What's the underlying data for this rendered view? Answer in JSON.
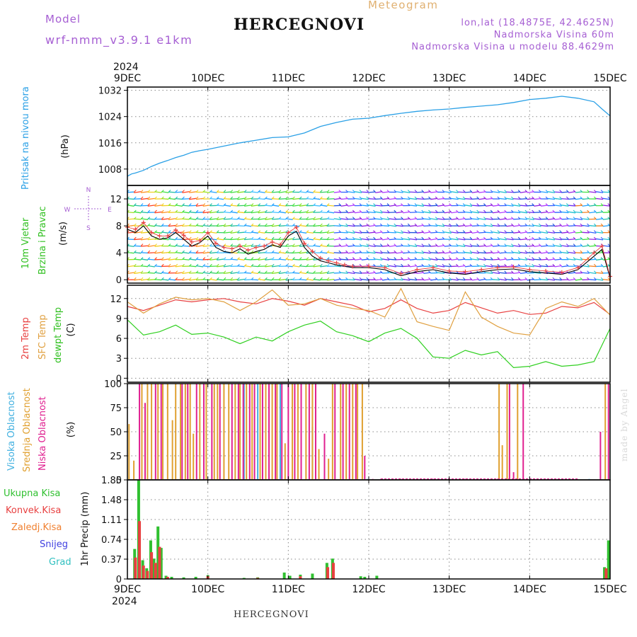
{
  "header": {
    "model_label": "Model",
    "model_name": "wrf-nmm_v3.9.1 e1km",
    "title": "HERCEGNOVI",
    "product": "Meteogram",
    "lonlat": "lon,lat (18.4875E, 42.4625N)",
    "elevation": "Nadmorska Visina 60m",
    "model_elevation": "Nadmorska Visina u modelu 88.4629m"
  },
  "footer": {
    "station": "HERCEGNOVI",
    "credit": "made by Angel"
  },
  "x_axis": {
    "year": "2024",
    "ticks": [
      "9DEC",
      "10DEC",
      "11DEC",
      "12DEC",
      "13DEC",
      "14DEC",
      "15DEC"
    ]
  },
  "colors": {
    "pressure": "#2aa0e6",
    "temp2m": "#e84040",
    "sfc": "#e0a040",
    "dewpt": "#30d020",
    "cloud_high": "#40b0e0",
    "cloud_mid": "#e0a030",
    "cloud_low": "#e02090",
    "precip_total": "#30c030",
    "precip_conv": "#e84040",
    "precip_frozen": "#f08030",
    "snow": "#4040e0",
    "hail": "#30c0c0",
    "purple_text": "#a65fd3"
  },
  "chart_data": [
    {
      "type": "line",
      "panel": "pressure",
      "ylabel_lines": [
        "Pritisak na nivou mora",
        "(hPa)"
      ],
      "yticks": [
        "1008",
        "1016",
        "1024",
        "1032"
      ],
      "ylim": [
        1003,
        1033
      ],
      "x_days": [
        0,
        0.05,
        0.1,
        0.2,
        0.3,
        0.4,
        0.5,
        0.6,
        0.7,
        0.8,
        0.9,
        1.0,
        1.2,
        1.4,
        1.6,
        1.8,
        2.0,
        2.2,
        2.4,
        2.6,
        2.8,
        3.0,
        3.2,
        3.4,
        3.6,
        3.8,
        4.0,
        4.2,
        4.4,
        4.6,
        4.8,
        5.0,
        5.2,
        5.4,
        5.6,
        5.8,
        5.9,
        6.0
      ],
      "values": [
        1005.8,
        1006.5,
        1006.8,
        1007.6,
        1008.8,
        1009.8,
        1010.6,
        1011.5,
        1012.2,
        1013.1,
        1013.6,
        1014.0,
        1015.0,
        1016.0,
        1016.8,
        1017.6,
        1017.8,
        1019.0,
        1021.0,
        1022.2,
        1023.2,
        1023.5,
        1024.3,
        1025.0,
        1025.6,
        1026.0,
        1026.3,
        1026.8,
        1027.2,
        1027.6,
        1028.3,
        1029.2,
        1029.6,
        1030.2,
        1029.6,
        1028.5,
        1026.3,
        1024.2
      ],
      "series": [
        {
          "name": "",
          "color": "#2aa0e6"
        }
      ]
    },
    {
      "type": "line",
      "panel": "wind",
      "ylabel_lines": [
        "10m Vjetar",
        "Brzina i Pravac",
        "(m/s)"
      ],
      "compass": [
        "N",
        "W",
        "E",
        "S"
      ],
      "yticks": [
        "0",
        "4",
        "8",
        "12"
      ],
      "ylim": [
        -0.5,
        14
      ],
      "x_days": [
        0,
        0.1,
        0.2,
        0.3,
        0.4,
        0.5,
        0.6,
        0.7,
        0.8,
        0.9,
        1.0,
        1.1,
        1.2,
        1.3,
        1.4,
        1.5,
        1.6,
        1.7,
        1.8,
        1.9,
        2.0,
        2.1,
        2.2,
        2.3,
        2.4,
        2.5,
        2.6,
        2.7,
        2.8,
        3.0,
        3.2,
        3.4,
        3.6,
        3.8,
        4.0,
        4.2,
        4.4,
        4.6,
        4.8,
        5.0,
        5.2,
        5.4,
        5.6,
        5.8,
        5.9,
        6.0
      ],
      "speed": [
        7.5,
        7.0,
        8.0,
        6.5,
        6.0,
        6.2,
        7.0,
        6.0,
        5.0,
        5.5,
        6.5,
        4.8,
        4.2,
        4.0,
        4.6,
        3.8,
        4.2,
        4.5,
        5.2,
        4.8,
        6.5,
        7.2,
        4.8,
        3.5,
        2.8,
        2.5,
        2.2,
        2.0,
        1.8,
        1.8,
        1.5,
        0.6,
        1.2,
        1.5,
        1.0,
        0.8,
        1.2,
        1.5,
        1.6,
        1.2,
        1.0,
        0.8,
        1.5,
        3.5,
        4.5,
        0.3
      ],
      "gust": [
        7.8,
        7.5,
        8.5,
        7.0,
        6.5,
        6.5,
        7.4,
        6.6,
        5.6,
        5.8,
        7.0,
        5.4,
        4.8,
        4.6,
        5.0,
        4.4,
        4.8,
        5.0,
        5.6,
        5.2,
        7.0,
        7.8,
        5.4,
        4.2,
        3.2,
        2.8,
        2.5,
        2.2,
        2.0,
        2.0,
        1.8,
        0.9,
        1.5,
        1.8,
        1.3,
        1.2,
        1.5,
        1.8,
        1.9,
        1.5,
        1.3,
        1.1,
        1.8,
        4.0,
        5.0,
        0.5
      ],
      "barb_rows": [
        0,
        1,
        2,
        3,
        4,
        5,
        6,
        7,
        8,
        9,
        10,
        11,
        12,
        13
      ],
      "series": [
        {
          "name": "",
          "color": "#000000"
        },
        {
          "name": "",
          "color": "#e84040"
        }
      ]
    },
    {
      "type": "line",
      "panel": "temperature",
      "ylabel_lines": [
        "2m Temp",
        "SFC Temp",
        "dewpt Temp",
        "(C)"
      ],
      "yticks": [
        "0",
        "3",
        "6",
        "9",
        "12"
      ],
      "ylim": [
        -0.6,
        14
      ],
      "x_days": [
        0,
        0.2,
        0.4,
        0.6,
        0.8,
        1.0,
        1.2,
        1.4,
        1.6,
        1.8,
        2.0,
        2.2,
        2.4,
        2.6,
        2.8,
        3.0,
        3.2,
        3.4,
        3.6,
        3.8,
        4.0,
        4.2,
        4.4,
        4.6,
        4.8,
        5.0,
        5.2,
        5.4,
        5.6,
        5.8,
        6.0
      ],
      "series": [
        {
          "name": "2m Temp",
          "color": "#e84040",
          "values": [
            10.8,
            10.2,
            11.0,
            11.8,
            11.5,
            11.8,
            12.0,
            11.5,
            11.2,
            12.0,
            11.6,
            11.0,
            12.0,
            11.5,
            11.0,
            10.0,
            10.5,
            11.8,
            10.5,
            9.8,
            10.2,
            11.4,
            10.6,
            9.8,
            10.2,
            9.6,
            9.8,
            10.8,
            10.6,
            11.4,
            9.6
          ]
        },
        {
          "name": "SFC Temp",
          "color": "#e0a040",
          "values": [
            11.5,
            9.8,
            11.2,
            12.2,
            11.8,
            12.0,
            11.5,
            10.2,
            11.5,
            13.3,
            11.0,
            11.2,
            12.0,
            11.0,
            10.5,
            10.2,
            9.2,
            13.5,
            8.5,
            7.8,
            7.2,
            13.0,
            9.2,
            7.8,
            6.8,
            6.5,
            10.5,
            11.5,
            10.8,
            12.0,
            9.5
          ]
        },
        {
          "name": "dewpt Temp",
          "color": "#30d020",
          "values": [
            8.8,
            6.5,
            7.0,
            8.0,
            6.6,
            6.8,
            6.2,
            5.2,
            6.2,
            5.6,
            7.0,
            8.0,
            8.6,
            7.0,
            6.4,
            5.5,
            6.8,
            7.5,
            6.0,
            3.2,
            3.0,
            4.2,
            3.5,
            4.0,
            1.6,
            1.8,
            2.5,
            1.8,
            2.0,
            2.5,
            7.5
          ]
        }
      ]
    },
    {
      "type": "bar",
      "panel": "cloud",
      "ylabel_lines": [
        "Visoka Oblacnost",
        "Srednja Oblacnost",
        "Niska Oblacnost",
        "(%)"
      ],
      "yticks": [
        "0",
        "25",
        "50",
        "75",
        "100"
      ],
      "ylim": [
        0,
        100
      ],
      "series": [
        {
          "name": "Visoka Oblacnost",
          "color": "#40b0e0",
          "x_days": [
            1.45,
            1.62,
            1.9,
            2.3,
            2.98,
            5.74
          ],
          "values": [
            100,
            100,
            100,
            55,
            1,
            1
          ]
        },
        {
          "name": "Srednja Oblacnost",
          "color": "#e0a030",
          "x_days": [
            0.02,
            0.08,
            0.18,
            0.25,
            0.3,
            0.38,
            0.44,
            0.5,
            0.56,
            0.6,
            0.66,
            0.72,
            0.78,
            0.82,
            0.9,
            0.98,
            1.08,
            1.12,
            1.2,
            1.26,
            1.34,
            1.4,
            1.48,
            1.55,
            1.65,
            1.72,
            1.8,
            1.86,
            1.96,
            2.05,
            2.12,
            2.22,
            2.3,
            2.38,
            2.5,
            2.55,
            2.65,
            2.72,
            2.8,
            2.86,
            2.92,
            4.62,
            4.66,
            4.72,
            4.85,
            5.94
          ],
          "values": [
            58,
            20,
            100,
            100,
            100,
            100,
            100,
            100,
            62,
            100,
            100,
            100,
            100,
            48,
            100,
            100,
            100,
            100,
            100,
            100,
            100,
            100,
            100,
            100,
            100,
            100,
            100,
            100,
            38,
            100,
            100,
            100,
            100,
            32,
            22,
            100,
            100,
            100,
            100,
            100,
            100,
            100,
            36,
            100,
            100,
            100
          ]
        },
        {
          "name": "Niska Oblacnost",
          "color": "#e02090",
          "x_days": [
            0.15,
            0.22,
            0.35,
            0.42,
            0.68,
            0.75,
            0.86,
            0.95,
            1.05,
            1.15,
            1.3,
            1.38,
            1.44,
            1.52,
            1.58,
            1.68,
            1.76,
            1.84,
            1.92,
            2.0,
            2.08,
            2.16,
            2.26,
            2.34,
            2.45,
            2.58,
            2.68,
            2.76,
            2.84,
            2.95,
            3.05,
            3.15,
            3.4,
            3.8,
            4.2,
            4.6,
            4.75,
            4.8,
            4.92,
            5.88,
            5.98
          ],
          "values": [
            100,
            80,
            100,
            100,
            100,
            100,
            100,
            100,
            100,
            100,
            100,
            100,
            100,
            100,
            100,
            100,
            100,
            100,
            100,
            100,
            100,
            100,
            100,
            100,
            48,
            100,
            100,
            100,
            100,
            25,
            1,
            1,
            1,
            1,
            1,
            1,
            100,
            8,
            100,
            50,
            100
          ]
        }
      ]
    },
    {
      "type": "bar",
      "panel": "precip",
      "ylabel_lines": [
        "1hr Precip (mm)"
      ],
      "legend": [
        "Ukupna Kisa",
        "Konvek.Kisa",
        "Zaledj.Kisa",
        "Snijeg",
        "Grad"
      ],
      "yticks": [
        "0",
        "0.37",
        "0.74",
        "1.11",
        "1.48",
        "1.85"
      ],
      "ylim": [
        0,
        1.85
      ],
      "series": [
        {
          "name": "Ukupna Kisa",
          "color": "#30c030",
          "x_days": [
            0.09,
            0.14,
            0.19,
            0.24,
            0.29,
            0.33,
            0.38,
            0.42,
            0.48,
            0.55,
            0.7,
            0.85,
            1.0,
            1.45,
            1.62,
            1.95,
            2.02,
            2.15,
            2.3,
            2.48,
            2.55,
            2.9,
            2.95,
            3.1,
            5.93,
            5.98
          ],
          "values": [
            0.56,
            1.84,
            0.35,
            0.2,
            0.72,
            0.38,
            0.98,
            0.58,
            0.06,
            0.04,
            0.03,
            0.04,
            0.07,
            0.02,
            0.03,
            0.12,
            0.06,
            0.08,
            0.1,
            0.3,
            0.38,
            0.05,
            0.04,
            0.06,
            0.22,
            0.72
          ]
        },
        {
          "name": "Konvek.Kisa",
          "color": "#e84040",
          "x_days": [
            0.1,
            0.15,
            0.2,
            0.25,
            0.3,
            0.35,
            0.4,
            0.5,
            1.0,
            1.62,
            2.15,
            2.49,
            2.56,
            5.95
          ],
          "values": [
            0.4,
            1.08,
            0.25,
            0.15,
            0.5,
            0.3,
            0.6,
            0.04,
            0.05,
            0.02,
            0.05,
            0.22,
            0.3,
            0.2
          ]
        },
        {
          "name": "Zaledj.Kisa",
          "color": "#f08030",
          "x_days": [],
          "values": []
        },
        {
          "name": "Snijeg",
          "color": "#4040e0",
          "x_days": [],
          "values": []
        },
        {
          "name": "Grad",
          "color": "#30c0c0",
          "x_days": [],
          "values": []
        }
      ]
    }
  ]
}
